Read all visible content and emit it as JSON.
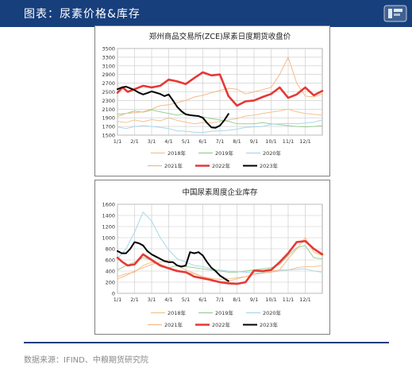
{
  "header": {
    "title": "图表：尿素价格&库存",
    "background_color": "#173f7c",
    "logo_icon": "company-logo-icon"
  },
  "footer": {
    "source": "数据来源：IFIND、中粮期货研究院"
  },
  "chart_data": [
    {
      "type": "line",
      "title": "郑州商品交易所(ZCE)尿素日度期货收盘价",
      "xlabel": "",
      "ylabel": "",
      "x_ticks": [
        "1/1",
        "2/1",
        "3/1",
        "4/1",
        "5/1",
        "6/1",
        "7/1",
        "8/1",
        "9/1",
        "10/1",
        "11/1",
        "12/1"
      ],
      "y_ticks": [
        1500,
        1700,
        1900,
        2100,
        2300,
        2500,
        2700,
        2900,
        3100,
        3300,
        3500
      ],
      "ylim": [
        1500,
        3500
      ],
      "xlim": [
        0,
        12
      ],
      "grid": true,
      "legend_position": "bottom",
      "series": [
        {
          "name": "2018年",
          "color": "#f2c48d",
          "width": 1,
          "x": [
            0,
            0.5,
            1,
            1.5,
            2,
            2.5,
            3,
            3.5,
            4,
            4.5,
            5,
            5.5,
            6,
            6.5,
            7,
            7.5,
            8,
            8.5,
            9,
            9.5,
            10,
            10.5,
            11,
            11.5,
            12
          ],
          "y": [
            1820,
            1790,
            1850,
            1810,
            1860,
            1830,
            1900,
            1840,
            1800,
            1760,
            1790,
            1780,
            1820,
            1850,
            1880,
            1940,
            1960,
            2000,
            2030,
            2060,
            2100,
            2040,
            2000,
            1980,
            1960
          ]
        },
        {
          "name": "2019年",
          "color": "#9bcf93",
          "width": 1,
          "x": [
            0,
            0.5,
            1,
            1.5,
            2,
            2.5,
            3,
            3.5,
            4,
            4.5,
            5,
            5.5,
            6,
            6.5,
            7,
            7.5,
            8,
            8.5,
            9,
            9.5,
            10,
            10.5,
            11,
            11.5,
            12
          ],
          "y": [
            1980,
            2000,
            2060,
            2030,
            2080,
            2040,
            2000,
            1960,
            2000,
            1950,
            1920,
            1880,
            1850,
            1820,
            1760,
            1760,
            1760,
            1790,
            1760,
            1740,
            1720,
            1700,
            1690,
            1700,
            1720
          ]
        },
        {
          "name": "2020年",
          "color": "#a8d8ec",
          "width": 1,
          "x": [
            0,
            0.5,
            1,
            1.5,
            2,
            2.5,
            3,
            3.5,
            4,
            4.5,
            5,
            5.5,
            6,
            6.5,
            7,
            7.5,
            8,
            8.5,
            9,
            9.5,
            10,
            10.5,
            11,
            11.5,
            12
          ],
          "y": [
            1690,
            1650,
            1700,
            1720,
            1700,
            1680,
            1650,
            1600,
            1590,
            1570,
            1560,
            1590,
            1600,
            1610,
            1640,
            1680,
            1690,
            1700,
            1750,
            1760,
            1770,
            1760,
            1780,
            1800,
            1850
          ]
        },
        {
          "name": "2021年",
          "color": "#f5b98a",
          "width": 1,
          "x": [
            0,
            0.5,
            1,
            1.5,
            2,
            2.5,
            3,
            3.5,
            4,
            4.5,
            5,
            5.5,
            6,
            6.5,
            7,
            7.5,
            8,
            8.5,
            9,
            9.5,
            10,
            10.5,
            11,
            11.5,
            12
          ],
          "y": [
            1930,
            2000,
            2020,
            2040,
            2100,
            2180,
            2200,
            2250,
            2300,
            2380,
            2420,
            2480,
            2530,
            2580,
            2560,
            2450,
            2500,
            2550,
            2600,
            2900,
            3300,
            2700,
            2400,
            2380,
            2450
          ]
        },
        {
          "name": "2022年",
          "color": "#e53935",
          "width": 2.6,
          "x": [
            0,
            0.3,
            0.6,
            1,
            1.5,
            2,
            2.5,
            3,
            3.5,
            4,
            4.5,
            5,
            5.5,
            6,
            6.5,
            7,
            7.5,
            8,
            8.5,
            9,
            9.5,
            10,
            10.5,
            11,
            11.5,
            12
          ],
          "y": [
            2480,
            2600,
            2500,
            2560,
            2640,
            2600,
            2640,
            2780,
            2740,
            2680,
            2820,
            2950,
            2880,
            2900,
            2400,
            2180,
            2280,
            2300,
            2380,
            2450,
            2600,
            2360,
            2440,
            2600,
            2420,
            2520
          ]
        },
        {
          "name": "2023年",
          "color": "#000000",
          "width": 2,
          "x": [
            0,
            0.25,
            0.5,
            0.75,
            1,
            1.25,
            1.5,
            1.75,
            2,
            2.25,
            2.5,
            2.75,
            3,
            3.25,
            3.5,
            3.75,
            4,
            4.25,
            4.5,
            4.75,
            5,
            5.25,
            5.5,
            5.75,
            6,
            6.25,
            6.5
          ],
          "y": [
            2560,
            2600,
            2620,
            2580,
            2540,
            2480,
            2440,
            2470,
            2510,
            2480,
            2450,
            2400,
            2440,
            2300,
            2150,
            2050,
            1980,
            1960,
            1950,
            1940,
            1900,
            1780,
            1680,
            1670,
            1720,
            1840,
            1990
          ]
        }
      ]
    },
    {
      "type": "line",
      "title": "中国尿素周度企业库存",
      "xlabel": "",
      "ylabel": "",
      "x_ticks": [
        "1/1",
        "2/1",
        "3/1",
        "4/1",
        "5/1",
        "6/1",
        "7/1",
        "8/1",
        "9/1",
        "10/1",
        "11/1",
        "12/1"
      ],
      "y_ticks": [
        0,
        200,
        400,
        600,
        800,
        1000,
        1200,
        1400,
        1600
      ],
      "ylim": [
        0,
        1600
      ],
      "xlim": [
        0,
        12
      ],
      "grid": true,
      "legend_position": "bottom",
      "series": [
        {
          "name": "2018年",
          "color": "#f2c48d",
          "width": 1,
          "x": [
            0,
            0.5,
            1,
            1.5,
            2,
            2.5,
            3,
            3.5,
            4,
            4.5,
            5,
            5.5,
            6,
            6.5,
            7,
            7.5,
            8,
            8.5,
            9,
            9.5,
            10,
            10.5,
            11,
            11.5,
            12
          ],
          "y": [
            300,
            350,
            380,
            500,
            560,
            520,
            450,
            420,
            380,
            350,
            300,
            270,
            250,
            260,
            280,
            300,
            340,
            380,
            400,
            420,
            420,
            460,
            480,
            480,
            500
          ]
        },
        {
          "name": "2019年",
          "color": "#9bcf93",
          "width": 1,
          "x": [
            0,
            0.5,
            1,
            1.5,
            2,
            2.5,
            3,
            3.5,
            4,
            4.5,
            5,
            5.5,
            6,
            6.5,
            7,
            7.5,
            8,
            8.5,
            9,
            9.5,
            10,
            10.5,
            11,
            11.5,
            12
          ],
          "y": [
            420,
            500,
            560,
            640,
            600,
            520,
            460,
            500,
            480,
            460,
            440,
            420,
            400,
            380,
            380,
            400,
            420,
            440,
            460,
            520,
            680,
            820,
            860,
            640,
            620
          ]
        },
        {
          "name": "2020年",
          "color": "#a8d8ec",
          "width": 1,
          "x": [
            0,
            0.5,
            1,
            1.5,
            2,
            2.5,
            3,
            3.5,
            4,
            4.5,
            5,
            5.5,
            6,
            6.5,
            7,
            7.5,
            8,
            8.5,
            9,
            9.5,
            10,
            10.5,
            11,
            11.5,
            12
          ],
          "y": [
            620,
            800,
            1100,
            1460,
            1300,
            1000,
            780,
            620,
            560,
            500,
            480,
            440,
            420,
            400,
            390,
            380,
            370,
            370,
            380,
            400,
            420,
            430,
            440,
            400,
            380
          ]
        },
        {
          "name": "2021年",
          "color": "#f5b98a",
          "width": 1,
          "x": [
            0,
            0.5,
            1,
            1.5,
            2,
            2.5,
            3,
            3.5,
            4,
            4.5,
            5,
            5.5,
            6,
            6.5,
            7,
            7.5,
            8,
            8.5,
            9,
            9.5,
            10,
            10.5,
            11,
            11.5,
            12
          ],
          "y": [
            260,
            320,
            400,
            460,
            520,
            560,
            600,
            500,
            420,
            360,
            300,
            220,
            200,
            220,
            260,
            300,
            340,
            360,
            380,
            420,
            620,
            800,
            1000,
            740,
            680
          ]
        },
        {
          "name": "2022年",
          "color": "#e53935",
          "width": 2.6,
          "x": [
            0,
            0.3,
            0.6,
            1,
            1.5,
            2,
            2.5,
            3,
            3.5,
            4,
            4.5,
            5,
            5.5,
            6,
            6.5,
            7,
            7.5,
            8,
            8.5,
            9,
            9.5,
            10,
            10.5,
            11,
            11.5,
            12
          ],
          "y": [
            640,
            560,
            500,
            520,
            700,
            600,
            500,
            450,
            400,
            380,
            300,
            270,
            240,
            200,
            180,
            170,
            200,
            410,
            400,
            420,
            560,
            720,
            920,
            940,
            800,
            700
          ]
        },
        {
          "name": "2023年",
          "color": "#000000",
          "width": 2,
          "x": [
            0,
            0.25,
            0.5,
            0.75,
            1,
            1.25,
            1.5,
            1.75,
            2,
            2.25,
            2.5,
            2.75,
            3,
            3.25,
            3.5,
            3.75,
            4,
            4.25,
            4.5,
            4.75,
            5,
            5.25,
            5.5,
            5.75,
            6,
            6.25,
            6.5
          ],
          "y": [
            760,
            720,
            720,
            800,
            920,
            900,
            860,
            760,
            700,
            660,
            620,
            580,
            560,
            560,
            500,
            480,
            500,
            740,
            720,
            740,
            680,
            560,
            460,
            400,
            320,
            270,
            220
          ]
        }
      ]
    }
  ]
}
